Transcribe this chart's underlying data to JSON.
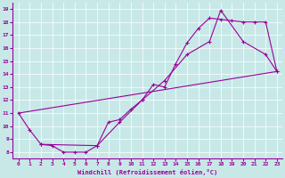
{
  "xlabel": "Windchill (Refroidissement éolien,°C)",
  "bg_color": "#c8e8e8",
  "line_color": "#990099",
  "xlim": [
    -0.5,
    23.5
  ],
  "ylim": [
    7.5,
    19.5
  ],
  "xticks": [
    0,
    1,
    2,
    3,
    4,
    5,
    6,
    7,
    8,
    9,
    10,
    11,
    12,
    13,
    14,
    15,
    16,
    17,
    18,
    19,
    20,
    21,
    22,
    23
  ],
  "yticks": [
    8,
    9,
    10,
    11,
    12,
    13,
    14,
    15,
    16,
    17,
    18,
    19
  ],
  "series": [
    {
      "x": [
        0,
        1,
        2,
        3,
        4,
        5,
        6,
        7,
        8,
        9,
        10,
        11,
        12,
        13,
        14,
        15,
        16,
        17,
        18,
        19,
        20,
        21,
        22,
        23
      ],
      "y": [
        11.0,
        9.7,
        8.6,
        8.5,
        8.0,
        8.0,
        8.0,
        8.5,
        10.3,
        10.5,
        11.3,
        12.0,
        13.2,
        13.0,
        14.8,
        16.4,
        17.5,
        18.3,
        18.2,
        18.1,
        18.0,
        18.0,
        18.0,
        14.2
      ],
      "marker": true
    },
    {
      "x": [
        0,
        23
      ],
      "y": [
        11.0,
        14.2
      ],
      "marker": false
    },
    {
      "x": [
        2,
        7,
        9,
        11,
        13,
        15,
        17,
        18,
        20,
        22,
        23
      ],
      "y": [
        8.6,
        8.5,
        10.3,
        12.0,
        13.5,
        15.5,
        16.5,
        18.9,
        16.5,
        15.5,
        14.2
      ],
      "marker": true
    }
  ]
}
